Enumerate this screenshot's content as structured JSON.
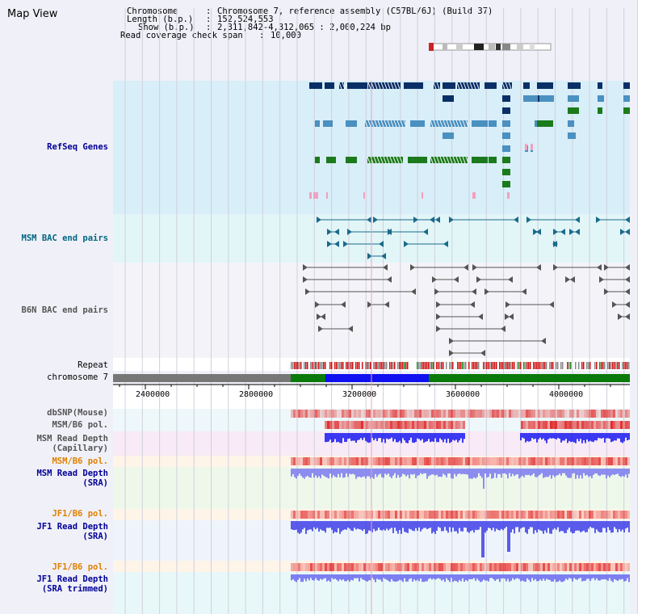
{
  "app": {
    "title": "Map View"
  },
  "info": {
    "chromosome_key": "Chromosome",
    "chromosome_val": "Chromosome 7, reference assembly (C57BL/6J) (Build 37)",
    "length_key": "Length (b.p.)",
    "length_val": "152,524,553",
    "show_key": "Show (b.p.)",
    "show_val": "2,311,842-4,312,065 : 2,000,224 bp",
    "span_key": "Read coverage check span",
    "span_val": "10,000"
  },
  "tracks": {
    "refseq": "RefSeq Genes",
    "msm_bac": "MSM BAC end pairs",
    "b6n_bac": "B6N BAC end pairs",
    "repeat": "Repeat",
    "chromosome": "chromosome 7",
    "dbsnp": "dbSNP(Mouse)",
    "msm_b6_pol": "MSM/B6 pol.",
    "msm_depth_cap": "MSM Read Depth\n(Capillary)",
    "msm_b6_pol2": "MSM/B6 pol.",
    "msm_depth_sra": "MSM Read Depth\n(SRA)",
    "jf1_b6_pol": "JF1/B6 pol.",
    "jf1_depth_sra": "JF1 Read Depth\n(SRA)",
    "jf1_b6_pol2": "JF1/B6 pol.",
    "jf1_depth_trim": "JF1 Read Depth\n(SRA trimmed)"
  },
  "axis": {
    "ticks": [
      "2400000",
      "2800000",
      "3200000",
      "3600000",
      "4000000"
    ],
    "tick_values": [
      2400000,
      2800000,
      3200000,
      3600000,
      4000000
    ],
    "start": 2311842,
    "end": 4312065
  },
  "colors": {
    "refseq_dark": "#0a2f66",
    "refseq_mid": "#4a90c0",
    "refseq_green": "#1b7a1b",
    "refseq_pink": "#f4a0c0",
    "bac_teal": "#1a6a8a",
    "bac_gray": "#555555",
    "chrom_gray": "#777777",
    "chrom_green": "#0a7a0a",
    "chrom_blue": "#1010f0",
    "pol_red": "#e02020",
    "depth_blue": "#2020e0",
    "orange_label": "#e08000",
    "navy_label": "#000099",
    "teal_label": "#006680"
  }
}
